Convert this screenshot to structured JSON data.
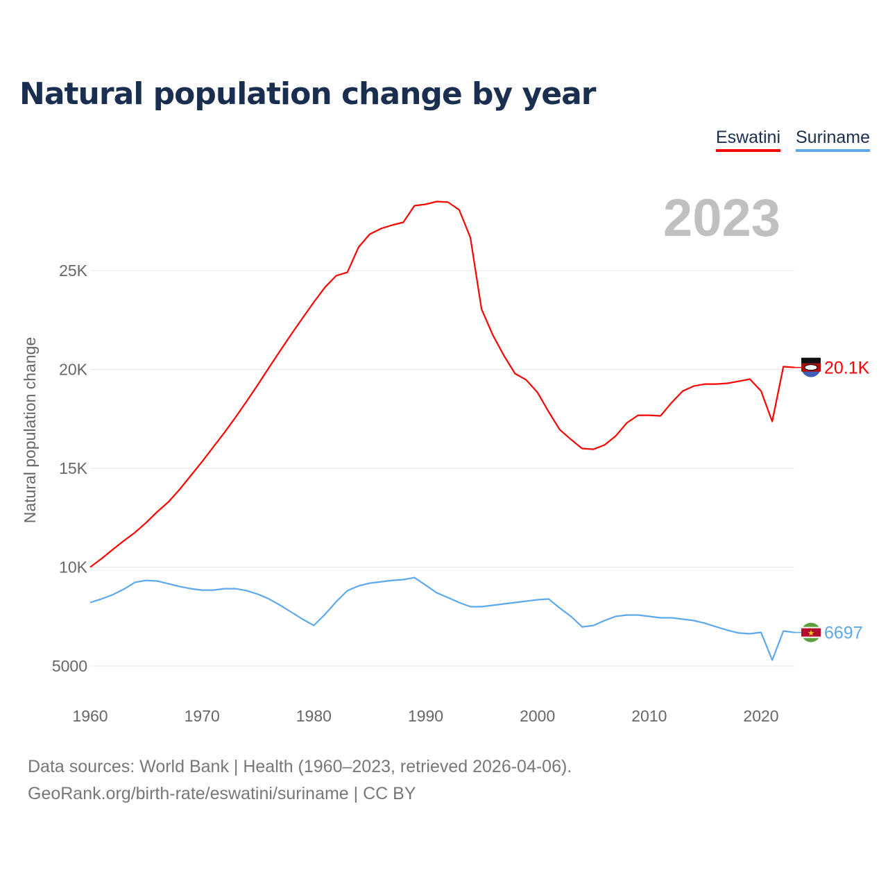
{
  "title": "Natural population change by year",
  "footer": {
    "line1": "Data sources: World Bank | Health (1960–2023, retrieved 2026-04-06).",
    "line2": "GeoRank.org/birth-rate/eswatini/suriname | CC BY"
  },
  "chart_data": {
    "type": "line",
    "title": "Natural population change by year",
    "ylabel": "Natural population change",
    "xlabel": "",
    "year_label": "2023",
    "xlim": [
      1960,
      2023
    ],
    "ylim": [
      4000,
      29000
    ],
    "x_ticks": [
      1960,
      1970,
      1980,
      1990,
      2000,
      2010,
      2020
    ],
    "x_tick_labels": [
      "1960",
      "1970",
      "1980",
      "1990",
      "2000",
      "2010",
      "2020"
    ],
    "y_ticks": [
      5000,
      10000,
      15000,
      20000,
      25000
    ],
    "y_tick_labels": [
      "5000",
      "10K",
      "15K",
      "20K",
      "25K"
    ],
    "grid": true,
    "legend_position": "top-right",
    "x": [
      1960,
      1961,
      1962,
      1963,
      1964,
      1965,
      1966,
      1967,
      1968,
      1969,
      1970,
      1971,
      1972,
      1973,
      1974,
      1975,
      1976,
      1977,
      1978,
      1979,
      1980,
      1981,
      1982,
      1983,
      1984,
      1985,
      1986,
      1987,
      1988,
      1989,
      1990,
      1991,
      1992,
      1993,
      1994,
      1995,
      1996,
      1997,
      1998,
      1999,
      2000,
      2001,
      2002,
      2003,
      2004,
      2005,
      2006,
      2007,
      2008,
      2009,
      2010,
      2011,
      2012,
      2013,
      2014,
      2015,
      2016,
      2017,
      2018,
      2019,
      2020,
      2021,
      2022,
      2023
    ],
    "series": [
      {
        "name": "Eswatini",
        "color": "#ff0000",
        "end_label": "20.1K",
        "values": [
          10000,
          10420,
          10880,
          11330,
          11750,
          12250,
          12800,
          13300,
          13930,
          14630,
          15330,
          16070,
          16800,
          17580,
          18390,
          19230,
          20100,
          20950,
          21790,
          22600,
          23400,
          24150,
          24740,
          24910,
          26180,
          26840,
          27120,
          27300,
          27440,
          28280,
          28350,
          28490,
          28460,
          28070,
          26670,
          23050,
          21750,
          20700,
          19790,
          19470,
          18840,
          17860,
          16950,
          16460,
          16000,
          15960,
          16180,
          16630,
          17300,
          17680,
          17680,
          17650,
          18320,
          18910,
          19160,
          19260,
          19260,
          19300,
          19400,
          19510,
          18910,
          17370,
          20140,
          20100
        ]
      },
      {
        "name": "Suriname",
        "color": "#5da8ec",
        "end_label": "6697",
        "values": [
          8210,
          8390,
          8600,
          8880,
          9230,
          9330,
          9300,
          9160,
          9020,
          8910,
          8840,
          8840,
          8910,
          8910,
          8810,
          8630,
          8390,
          8070,
          7720,
          7370,
          7050,
          7610,
          8250,
          8810,
          9050,
          9190,
          9260,
          9330,
          9370,
          9470,
          9090,
          8700,
          8460,
          8210,
          8000,
          8000,
          8070,
          8140,
          8210,
          8280,
          8350,
          8390,
          7930,
          7510,
          6980,
          7050,
          7300,
          7510,
          7580,
          7580,
          7510,
          7440,
          7440,
          7370,
          7300,
          7160,
          6980,
          6810,
          6670,
          6630,
          6700,
          5300,
          6770,
          6697
        ]
      }
    ]
  }
}
